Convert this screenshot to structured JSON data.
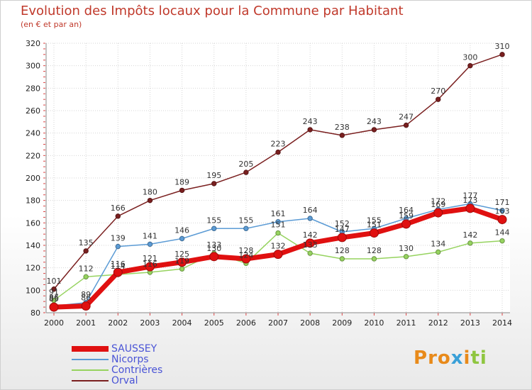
{
  "header": {
    "title": "Evolution des Impôts locaux pour la Commune par Habitant",
    "subtitle": "(en € et par an)"
  },
  "logo": {
    "text": "Proxiti",
    "colors": [
      "#e88a1a",
      "#e88a1a",
      "#e88a1a",
      "#3aa0d8",
      "#e88a1a",
      "#8fc640",
      "#8fc640"
    ]
  },
  "chart_data": {
    "type": "line",
    "title": "Evolution des Impôts locaux pour la Commune par Habitant",
    "subtitle": "(en € et par an)",
    "xlabel": "",
    "ylabel": "",
    "x": [
      "2000",
      "2001",
      "2002",
      "2003",
      "2004",
      "2005",
      "2006",
      "2007",
      "2008",
      "2009",
      "2010",
      "2011",
      "2012",
      "2013",
      "2014"
    ],
    "ylim": [
      80,
      320
    ],
    "yticks": [
      80,
      100,
      120,
      140,
      160,
      180,
      200,
      220,
      240,
      260,
      280,
      300,
      320
    ],
    "grid": true,
    "legend_position": "bottom-left",
    "series": [
      {
        "name": "Orval",
        "color": "#7a1f1f",
        "values": [
          101,
          135,
          166,
          180,
          189,
          195,
          205,
          223,
          243,
          238,
          243,
          247,
          270,
          300,
          310
        ]
      },
      {
        "name": "Contrières",
        "color": "#96d35f",
        "values": [
          91,
          112,
          114,
          116,
          119,
          133,
          124,
          151,
          133,
          128,
          128,
          130,
          134,
          142,
          144
        ]
      },
      {
        "name": "Nicorps",
        "color": "#5b9bd5",
        "values": [
          86,
          89,
          139,
          141,
          146,
          155,
          155,
          161,
          164,
          152,
          155,
          164,
          172,
          177,
          171
        ]
      },
      {
        "name": "SAUSSEY",
        "color": "#e01010",
        "values": [
          85,
          86,
          116,
          121,
          125,
          130,
          128,
          132,
          142,
          147,
          151,
          159,
          169,
          173,
          163
        ]
      }
    ]
  }
}
